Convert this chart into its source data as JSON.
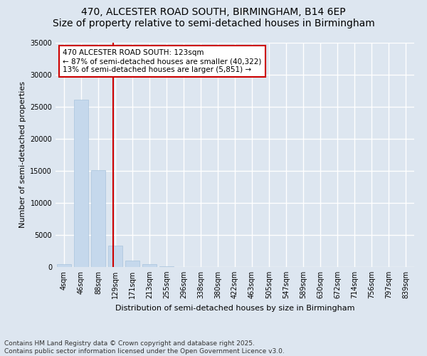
{
  "title_line1": "470, ALCESTER ROAD SOUTH, BIRMINGHAM, B14 6EP",
  "title_line2": "Size of property relative to semi-detached houses in Birmingham",
  "xlabel": "Distribution of semi-detached houses by size in Birmingham",
  "ylabel": "Number of semi-detached properties",
  "categories": [
    "4sqm",
    "46sqm",
    "88sqm",
    "129sqm",
    "171sqm",
    "213sqm",
    "255sqm",
    "296sqm",
    "338sqm",
    "380sqm",
    "422sqm",
    "463sqm",
    "505sqm",
    "547sqm",
    "589sqm",
    "630sqm",
    "672sqm",
    "714sqm",
    "756sqm",
    "797sqm",
    "839sqm"
  ],
  "values": [
    400,
    26100,
    15100,
    3300,
    1050,
    450,
    150,
    0,
    0,
    0,
    0,
    0,
    0,
    0,
    0,
    0,
    0,
    0,
    0,
    0,
    0
  ],
  "bar_color": "#c5d8ec",
  "bar_edgecolor": "#a8c4dc",
  "vline_x_index": 2.87,
  "vline_color": "#cc0000",
  "annotation_text": "470 ALCESTER ROAD SOUTH: 123sqm\n← 87% of semi-detached houses are smaller (40,322)\n13% of semi-detached houses are larger (5,851) →",
  "annotation_box_edgecolor": "#cc0000",
  "annotation_box_facecolor": "#ffffff",
  "ylim": [
    0,
    35000
  ],
  "yticks": [
    0,
    5000,
    10000,
    15000,
    20000,
    25000,
    30000,
    35000
  ],
  "background_color": "#dde6f0",
  "plot_background": "#dde6f0",
  "grid_color": "#ffffff",
  "footer_text": "Contains HM Land Registry data © Crown copyright and database right 2025.\nContains public sector information licensed under the Open Government Licence v3.0.",
  "title_fontsize": 10,
  "subtitle_fontsize": 9,
  "axis_label_fontsize": 8,
  "tick_fontsize": 7,
  "annotation_fontsize": 7.5,
  "footer_fontsize": 6.5
}
